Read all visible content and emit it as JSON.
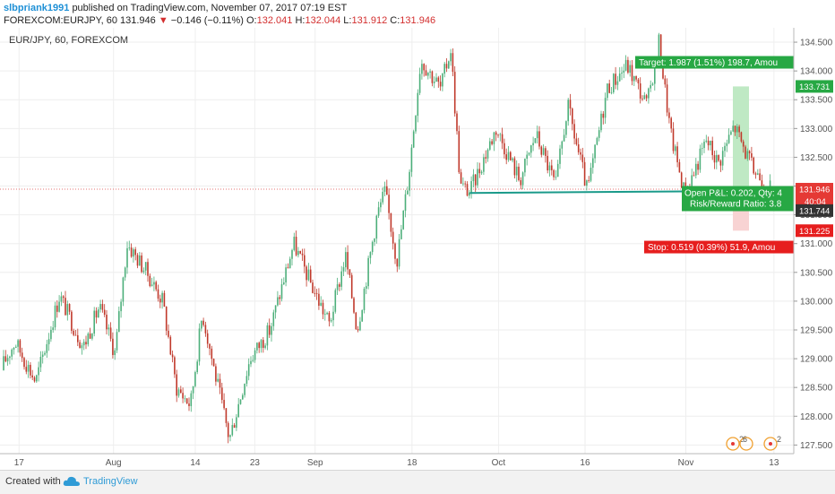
{
  "header": {
    "author": "slbpriank1991",
    "published_text": "published on TradingView.com, November 07, 2017 07:19 EST",
    "symbol": "FOREXCOM:EURJPY, 60",
    "last": "131.946",
    "change": "−0.146 (−0.11%)",
    "open_label": "O:",
    "open": "132.041",
    "high_label": "H:",
    "high": "132.044",
    "low_label": "L:",
    "low": "131.912",
    "close_label": "C:",
    "close": "131.946"
  },
  "footer": {
    "created_with": "Created with",
    "brand": "TradingView"
  },
  "chart_data": {
    "type": "candlestick",
    "title": "EUR/JPY, 60, FOREXCOM",
    "ylim": [
      127.35,
      134.75
    ],
    "y_ticks": [
      "127.500",
      "128.000",
      "128.500",
      "129.000",
      "129.500",
      "130.000",
      "130.500",
      "131.000",
      "131.500",
      "132.000",
      "132.500",
      "133.000",
      "133.500",
      "134.000",
      "134.500"
    ],
    "x_ticks": [
      "17",
      "Aug",
      "14",
      "23",
      "Sep",
      "18",
      "Oct",
      "16",
      "Nov",
      "13"
    ],
    "price_path": [
      {
        "x": 0.0,
        "y": 128.8
      },
      {
        "x": 0.019,
        "y": 129.3
      },
      {
        "x": 0.045,
        "y": 128.6
      },
      {
        "x": 0.075,
        "y": 130.1
      },
      {
        "x": 0.105,
        "y": 129.2
      },
      {
        "x": 0.125,
        "y": 129.9
      },
      {
        "x": 0.145,
        "y": 129.1
      },
      {
        "x": 0.16,
        "y": 131.0
      },
      {
        "x": 0.185,
        "y": 130.5
      },
      {
        "x": 0.205,
        "y": 130.0
      },
      {
        "x": 0.222,
        "y": 128.5
      },
      {
        "x": 0.24,
        "y": 128.2
      },
      {
        "x": 0.255,
        "y": 129.8
      },
      {
        "x": 0.27,
        "y": 128.8
      },
      {
        "x": 0.289,
        "y": 127.6
      },
      {
        "x": 0.315,
        "y": 129.0
      },
      {
        "x": 0.34,
        "y": 129.5
      },
      {
        "x": 0.37,
        "y": 131.0
      },
      {
        "x": 0.395,
        "y": 130.2
      },
      {
        "x": 0.415,
        "y": 129.6
      },
      {
        "x": 0.435,
        "y": 130.8
      },
      {
        "x": 0.45,
        "y": 129.5
      },
      {
        "x": 0.475,
        "y": 131.5
      },
      {
        "x": 0.485,
        "y": 131.9
      },
      {
        "x": 0.5,
        "y": 130.7
      },
      {
        "x": 0.515,
        "y": 132.2
      },
      {
        "x": 0.53,
        "y": 134.2
      },
      {
        "x": 0.555,
        "y": 133.7
      },
      {
        "x": 0.568,
        "y": 134.4
      },
      {
        "x": 0.58,
        "y": 132.0
      },
      {
        "x": 0.592,
        "y": 131.9
      },
      {
        "x": 0.625,
        "y": 133.0
      },
      {
        "x": 0.655,
        "y": 132.1
      },
      {
        "x": 0.675,
        "y": 132.9
      },
      {
        "x": 0.7,
        "y": 132.0
      },
      {
        "x": 0.715,
        "y": 133.4
      },
      {
        "x": 0.74,
        "y": 131.9
      },
      {
        "x": 0.765,
        "y": 133.7
      },
      {
        "x": 0.79,
        "y": 134.1
      },
      {
        "x": 0.815,
        "y": 133.4
      },
      {
        "x": 0.83,
        "y": 134.5
      },
      {
        "x": 0.845,
        "y": 132.9
      },
      {
        "x": 0.863,
        "y": 131.85
      },
      {
        "x": 0.89,
        "y": 132.8
      },
      {
        "x": 0.905,
        "y": 132.4
      },
      {
        "x": 0.925,
        "y": 133.05
      },
      {
        "x": 0.948,
        "y": 132.3
      },
      {
        "x": 0.972,
        "y": 131.946
      }
    ],
    "support_line": {
      "x_start": 0.592,
      "x_end": 0.983,
      "y_start": 131.88,
      "y_end": 131.92
    },
    "current_price_line": 131.946,
    "position": {
      "entry": 131.744,
      "target": 133.731,
      "stop": 131.225,
      "target_label": "Target: 1.987 (1.51%) 198.7, Amou",
      "stop_label": "Stop: 0.519 (0.39%) 51.9, Amou",
      "pnl_label": "Open P&L: 0.202, Qty: 4",
      "rr_label": "Risk/Reward Ratio: 3.8"
    },
    "price_tags": {
      "current": "131.946",
      "timer": "40:04",
      "entry": "131.744",
      "target": "133.731",
      "stop": "131.225"
    },
    "events": [
      "2",
      "6",
      "2"
    ],
    "colors": {
      "up": "#4caf7a",
      "down": "#c0392b",
      "support": "#1a9a8a",
      "target": "#27a844",
      "stop": "#e61e1e",
      "target_zone": "#bfe9c4",
      "stop_zone": "#f8d3d3",
      "current": "#e53935",
      "entry": "#333333"
    }
  }
}
